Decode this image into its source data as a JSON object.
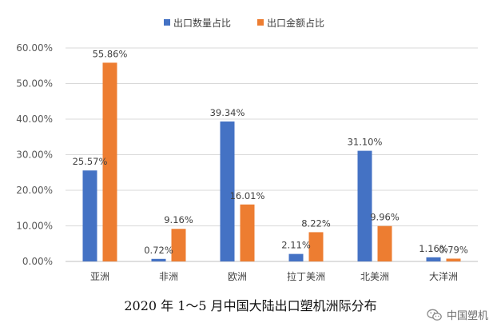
{
  "caption": "2020 年 1～5 月中国大陆出口塑机洲际分布",
  "watermark": {
    "text": "中国塑机",
    "icon": "wechat-icon"
  },
  "chart_data": {
    "type": "bar",
    "categories": [
      "亚洲",
      "非洲",
      "欧洲",
      "拉丁美洲",
      "北美洲",
      "大洋洲"
    ],
    "series": [
      {
        "name": "出口数量占比",
        "color": "#4472c4",
        "values": [
          25.57,
          0.72,
          39.34,
          2.11,
          31.1,
          1.16
        ],
        "labels": [
          "25.57%",
          "0.72%",
          "39.34%",
          "2.11%",
          "31.10%",
          "1.16%"
        ]
      },
      {
        "name": "出口金额占比",
        "color": "#ed7d31",
        "values": [
          55.86,
          9.16,
          16.01,
          8.22,
          9.96,
          0.79
        ],
        "labels": [
          "55.86%",
          "9.16%",
          "16.01%",
          "8.22%",
          "9.96%",
          "0.79%"
        ]
      }
    ],
    "ylim": [
      0,
      60
    ],
    "yticks": [
      "0.00%",
      "10.00%",
      "20.00%",
      "30.00%",
      "40.00%",
      "50.00%",
      "60.00%"
    ],
    "grid": true,
    "legend_position": "top"
  }
}
